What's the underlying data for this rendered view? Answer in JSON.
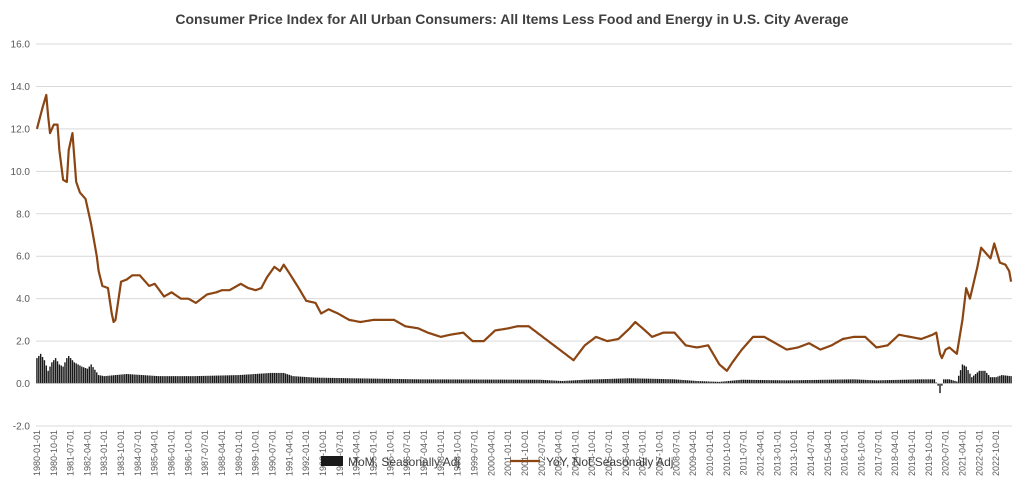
{
  "chart_data": {
    "type": "bar+line",
    "title": "Consumer Price Index for All Urban Consumers: All Items Less Food and Energy in U.S. City Average",
    "ylim": [
      -2.0,
      16.0
    ],
    "yticks": [
      "-2.0",
      "0.0",
      "2.0",
      "4.0",
      "6.0",
      "8.0",
      "10.0",
      "12.0",
      "14.0",
      "16.0"
    ],
    "ytick_values": [
      -2,
      0,
      2,
      4,
      6,
      8,
      10,
      12,
      14,
      16
    ],
    "grid": true,
    "legend_position": "bottom",
    "x_start": "1980-01",
    "x_end": "2023-06",
    "x_tick_labels": [
      "1980-01-01",
      "1980-10-01",
      "1981-07-01",
      "1982-04-01",
      "1983-01-01",
      "1983-10-01",
      "1984-07-01",
      "1985-04-01",
      "1986-01-01",
      "1986-10-01",
      "1987-07-01",
      "1988-04-01",
      "1989-01-01",
      "1989-10-01",
      "1990-07-01",
      "1991-04-01",
      "1992-01-01",
      "1992-10-01",
      "1993-07-01",
      "1994-04-01",
      "1995-01-01",
      "1995-10-01",
      "1996-07-01",
      "1997-04-01",
      "1998-01-01",
      "1998-10-01",
      "1999-07-01",
      "2000-04-01",
      "2001-01-01",
      "2001-10-01",
      "2002-07-01",
      "2003-04-01",
      "2004-01-01",
      "2004-10-01",
      "2005-07-01",
      "2006-04-01",
      "2007-01-01",
      "2007-10-01",
      "2008-07-01",
      "2009-04-01",
      "2010-01-01",
      "2010-10-01",
      "2011-07-01",
      "2012-04-01",
      "2013-01-01",
      "2013-10-01",
      "2014-07-01",
      "2015-04-01",
      "2016-01-01",
      "2016-10-01",
      "2017-07-01",
      "2018-04-01",
      "2019-01-01",
      "2019-10-01",
      "2020-07-01",
      "2021-04-01",
      "2022-01-01",
      "2022-10-01"
    ],
    "series": [
      {
        "name": "MoM, Seasonally Adj",
        "type": "bar",
        "color": "#1a1a1a",
        "anchors": [
          [
            "1980-01",
            1.2
          ],
          [
            "1980-03",
            1.4
          ],
          [
            "1980-05",
            1.1
          ],
          [
            "1980-07",
            0.6
          ],
          [
            "1980-09",
            1.0
          ],
          [
            "1980-11",
            1.2
          ],
          [
            "1981-01",
            0.9
          ],
          [
            "1981-03",
            0.8
          ],
          [
            "1981-05",
            1.2
          ],
          [
            "1981-06",
            1.3
          ],
          [
            "1981-09",
            1.0
          ],
          [
            "1982-01",
            0.8
          ],
          [
            "1982-04",
            0.7
          ],
          [
            "1982-06",
            0.9
          ],
          [
            "1982-10",
            0.4
          ],
          [
            "1983-01",
            0.35
          ],
          [
            "1984-01",
            0.45
          ],
          [
            "1985-06",
            0.35
          ],
          [
            "1987-01",
            0.35
          ],
          [
            "1989-01",
            0.4
          ],
          [
            "1990-06",
            0.5
          ],
          [
            "1991-01",
            0.5
          ],
          [
            "1991-06",
            0.35
          ],
          [
            "1992-06",
            0.28
          ],
          [
            "1994-01",
            0.25
          ],
          [
            "1997-01",
            0.2
          ],
          [
            "2002-06",
            0.18
          ],
          [
            "2003-06",
            0.12
          ],
          [
            "2004-06",
            0.18
          ],
          [
            "2006-06",
            0.25
          ],
          [
            "2008-06",
            0.2
          ],
          [
            "2009-06",
            0.12
          ],
          [
            "2010-06",
            0.08
          ],
          [
            "2011-06",
            0.18
          ],
          [
            "2013-06",
            0.15
          ],
          [
            "2016-06",
            0.2
          ],
          [
            "2017-06",
            0.15
          ],
          [
            "2019-06",
            0.2
          ],
          [
            "2020-01",
            0.2
          ],
          [
            "2020-03",
            -0.1
          ],
          [
            "2020-04",
            -0.45
          ],
          [
            "2020-05",
            -0.1
          ],
          [
            "2020-06",
            0.2
          ],
          [
            "2020-09",
            0.2
          ],
          [
            "2021-01",
            0.1
          ],
          [
            "2021-04",
            0.9
          ],
          [
            "2021-06",
            0.8
          ],
          [
            "2021-09",
            0.3
          ],
          [
            "2022-01",
            0.6
          ],
          [
            "2022-04",
            0.6
          ],
          [
            "2022-07",
            0.3
          ],
          [
            "2022-10",
            0.3
          ],
          [
            "2023-01",
            0.4
          ],
          [
            "2023-06",
            0.35
          ]
        ]
      },
      {
        "name": "YoY, Not Seasonally Adj",
        "type": "line",
        "color": "#8b4513",
        "anchors": [
          [
            "1980-01",
            12.0
          ],
          [
            "1980-04",
            13.0
          ],
          [
            "1980-06",
            13.6
          ],
          [
            "1980-07",
            12.6
          ],
          [
            "1980-08",
            11.8
          ],
          [
            "1980-10",
            12.2
          ],
          [
            "1980-12",
            12.2
          ],
          [
            "1981-01",
            11.0
          ],
          [
            "1981-03",
            9.6
          ],
          [
            "1981-05",
            9.5
          ],
          [
            "1981-06",
            11.0
          ],
          [
            "1981-08",
            11.8
          ],
          [
            "1981-10",
            9.5
          ],
          [
            "1981-12",
            9.0
          ],
          [
            "1982-03",
            8.7
          ],
          [
            "1982-06",
            7.5
          ],
          [
            "1982-09",
            6.0
          ],
          [
            "1982-10",
            5.3
          ],
          [
            "1982-12",
            4.6
          ],
          [
            "1983-03",
            4.5
          ],
          [
            "1983-05",
            3.3
          ],
          [
            "1983-06",
            2.9
          ],
          [
            "1983-07",
            3.0
          ],
          [
            "1983-10",
            4.8
          ],
          [
            "1984-01",
            4.9
          ],
          [
            "1984-04",
            5.1
          ],
          [
            "1984-08",
            5.1
          ],
          [
            "1985-01",
            4.6
          ],
          [
            "1985-04",
            4.7
          ],
          [
            "1985-09",
            4.1
          ],
          [
            "1986-01",
            4.3
          ],
          [
            "1986-06",
            4.0
          ],
          [
            "1986-10",
            4.0
          ],
          [
            "1987-02",
            3.8
          ],
          [
            "1987-08",
            4.2
          ],
          [
            "1988-01",
            4.3
          ],
          [
            "1988-04",
            4.4
          ],
          [
            "1988-08",
            4.4
          ],
          [
            "1989-02",
            4.7
          ],
          [
            "1989-06",
            4.5
          ],
          [
            "1989-10",
            4.4
          ],
          [
            "1990-01",
            4.5
          ],
          [
            "1990-04",
            5.0
          ],
          [
            "1990-08",
            5.5
          ],
          [
            "1990-11",
            5.3
          ],
          [
            "1991-01",
            5.6
          ],
          [
            "1991-04",
            5.2
          ],
          [
            "1991-09",
            4.5
          ],
          [
            "1992-01",
            3.9
          ],
          [
            "1992-06",
            3.8
          ],
          [
            "1992-09",
            3.3
          ],
          [
            "1993-01",
            3.5
          ],
          [
            "1993-06",
            3.3
          ],
          [
            "1993-12",
            3.0
          ],
          [
            "1994-06",
            2.9
          ],
          [
            "1995-01",
            3.0
          ],
          [
            "1995-06",
            3.0
          ],
          [
            "1995-12",
            3.0
          ],
          [
            "1996-06",
            2.7
          ],
          [
            "1997-01",
            2.6
          ],
          [
            "1997-06",
            2.4
          ],
          [
            "1998-01",
            2.2
          ],
          [
            "1998-06",
            2.3
          ],
          [
            "1999-01",
            2.4
          ],
          [
            "1999-06",
            2.0
          ],
          [
            "1999-12",
            2.0
          ],
          [
            "2000-06",
            2.5
          ],
          [
            "2001-01",
            2.6
          ],
          [
            "2001-06",
            2.7
          ],
          [
            "2001-12",
            2.7
          ],
          [
            "2002-06",
            2.3
          ],
          [
            "2002-12",
            1.9
          ],
          [
            "2003-06",
            1.5
          ],
          [
            "2003-12",
            1.1
          ],
          [
            "2004-06",
            1.8
          ],
          [
            "2004-12",
            2.2
          ],
          [
            "2005-06",
            2.0
          ],
          [
            "2005-12",
            2.1
          ],
          [
            "2006-06",
            2.6
          ],
          [
            "2006-09",
            2.9
          ],
          [
            "2007-01",
            2.6
          ],
          [
            "2007-06",
            2.2
          ],
          [
            "2007-12",
            2.4
          ],
          [
            "2008-06",
            2.4
          ],
          [
            "2008-12",
            1.8
          ],
          [
            "2009-06",
            1.7
          ],
          [
            "2009-12",
            1.8
          ],
          [
            "2010-06",
            0.9
          ],
          [
            "2010-10",
            0.6
          ],
          [
            "2011-01",
            1.0
          ],
          [
            "2011-06",
            1.6
          ],
          [
            "2011-12",
            2.2
          ],
          [
            "2012-06",
            2.2
          ],
          [
            "2012-12",
            1.9
          ],
          [
            "2013-06",
            1.6
          ],
          [
            "2013-12",
            1.7
          ],
          [
            "2014-06",
            1.9
          ],
          [
            "2014-12",
            1.6
          ],
          [
            "2015-06",
            1.8
          ],
          [
            "2015-12",
            2.1
          ],
          [
            "2016-06",
            2.2
          ],
          [
            "2016-12",
            2.2
          ],
          [
            "2017-06",
            1.7
          ],
          [
            "2017-12",
            1.8
          ],
          [
            "2018-06",
            2.3
          ],
          [
            "2018-12",
            2.2
          ],
          [
            "2019-06",
            2.1
          ],
          [
            "2019-12",
            2.3
          ],
          [
            "2020-02",
            2.4
          ],
          [
            "2020-04",
            1.4
          ],
          [
            "2020-05",
            1.2
          ],
          [
            "2020-07",
            1.6
          ],
          [
            "2020-09",
            1.7
          ],
          [
            "2021-01",
            1.4
          ],
          [
            "2021-04",
            3.0
          ],
          [
            "2021-06",
            4.5
          ],
          [
            "2021-08",
            4.0
          ],
          [
            "2021-12",
            5.5
          ],
          [
            "2022-02",
            6.4
          ],
          [
            "2022-04",
            6.2
          ],
          [
            "2022-07",
            5.9
          ],
          [
            "2022-09",
            6.6
          ],
          [
            "2022-12",
            5.7
          ],
          [
            "2023-03",
            5.6
          ],
          [
            "2023-05",
            5.3
          ],
          [
            "2023-06",
            4.8
          ]
        ]
      }
    ]
  }
}
